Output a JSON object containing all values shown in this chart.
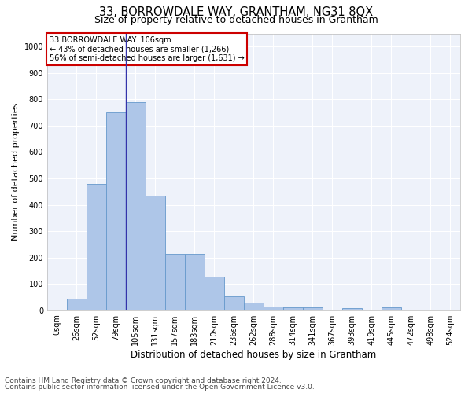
{
  "title": "33, BORROWDALE WAY, GRANTHAM, NG31 8QX",
  "subtitle": "Size of property relative to detached houses in Grantham",
  "xlabel": "Distribution of detached houses by size in Grantham",
  "ylabel": "Number of detached properties",
  "bar_labels": [
    "0sqm",
    "26sqm",
    "52sqm",
    "79sqm",
    "105sqm",
    "131sqm",
    "157sqm",
    "183sqm",
    "210sqm",
    "236sqm",
    "262sqm",
    "288sqm",
    "314sqm",
    "341sqm",
    "367sqm",
    "393sqm",
    "419sqm",
    "445sqm",
    "472sqm",
    "498sqm",
    "524sqm"
  ],
  "bar_values": [
    0,
    45,
    480,
    750,
    790,
    435,
    215,
    215,
    128,
    52,
    28,
    15,
    10,
    10,
    0,
    8,
    0,
    10,
    0,
    0,
    0
  ],
  "bar_color": "#aec6e8",
  "bar_edge_color": "#6699cc",
  "vline_color": "#3333aa",
  "ylim": [
    0,
    1050
  ],
  "yticks": [
    0,
    100,
    200,
    300,
    400,
    500,
    600,
    700,
    800,
    900,
    1000
  ],
  "annotation_text": "33 BORROWDALE WAY: 106sqm\n← 43% of detached houses are smaller (1,266)\n56% of semi-detached houses are larger (1,631) →",
  "annotation_box_color": "#ffffff",
  "annotation_box_edge": "#cc0000",
  "footer1": "Contains HM Land Registry data © Crown copyright and database right 2024.",
  "footer2": "Contains public sector information licensed under the Open Government Licence v3.0.",
  "bg_color": "#eef2fa",
  "grid_color": "#ffffff",
  "fig_bg_color": "#ffffff",
  "title_fontsize": 10.5,
  "subtitle_fontsize": 9,
  "xlabel_fontsize": 8.5,
  "ylabel_fontsize": 8,
  "tick_fontsize": 7,
  "annot_fontsize": 7,
  "footer_fontsize": 6.5,
  "vline_bin_index": 4
}
